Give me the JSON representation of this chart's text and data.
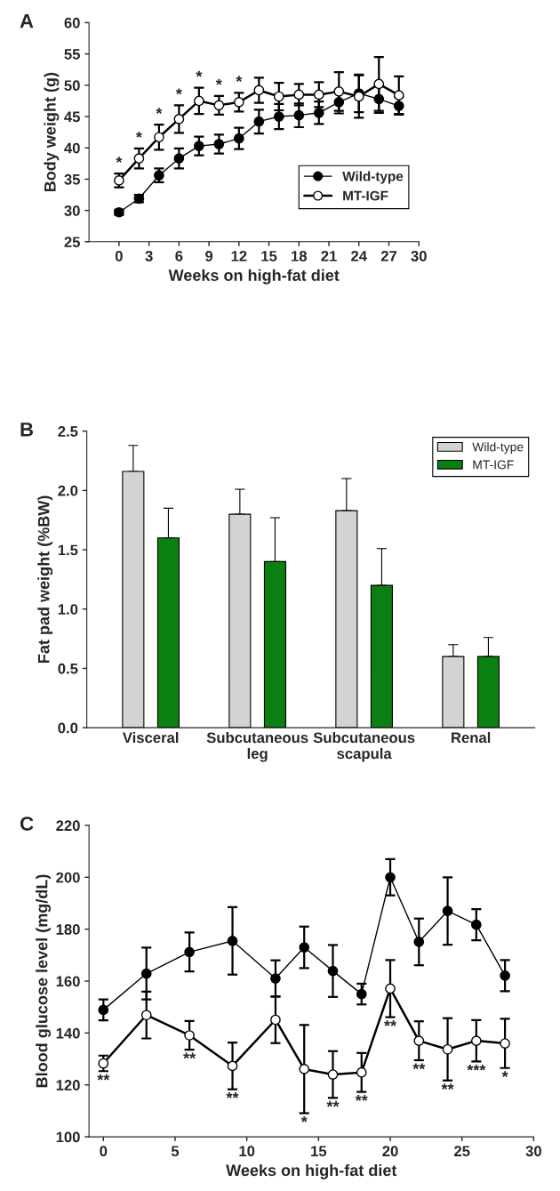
{
  "chart_data": [
    {
      "type": "line",
      "xlabel": "Weeks on high-fat diet",
      "ylabel": "Body weight (g)",
      "x": [
        0,
        2,
        4,
        6,
        8,
        10,
        12,
        14,
        16,
        18,
        20,
        22,
        24,
        26,
        28
      ],
      "series": [
        {
          "name": "Wild-type",
          "color": "#000000",
          "values": [
            29.7,
            31.9,
            35.6,
            38.3,
            40.3,
            40.6,
            41.5,
            44.2,
            45.0,
            45.2,
            45.6,
            47.3,
            48.7,
            47.8,
            46.7
          ],
          "errors": [
            0.4,
            0.6,
            1.1,
            1.6,
            1.5,
            1.5,
            1.7,
            1.9,
            2.0,
            1.9,
            1.8,
            1.8,
            3.0,
            2.2,
            1.4
          ]
        },
        {
          "name": "MT-IGF",
          "color": "#ffffff",
          "values": [
            34.8,
            38.3,
            41.7,
            44.6,
            47.5,
            46.8,
            47.3,
            49.2,
            48.2,
            48.5,
            48.5,
            49.0,
            48.2,
            50.2,
            48.4
          ],
          "errors": [
            1.1,
            1.6,
            2.0,
            2.2,
            2.1,
            1.5,
            1.5,
            2.0,
            2.2,
            1.7,
            2.0,
            3.1,
            3.4,
            4.3,
            3.0
          ]
        }
      ],
      "xlim": [
        -3,
        30
      ],
      "xticks": [
        0,
        3,
        6,
        9,
        12,
        15,
        18,
        21,
        24,
        27,
        30
      ],
      "ylim": [
        25,
        60
      ],
      "yticks": [
        25,
        30,
        35,
        40,
        45,
        50,
        55,
        60
      ],
      "marker": "circle",
      "legend": "bottom right",
      "grid": false,
      "annotations": [
        "A",
        {
          "text": "*",
          "x": 0,
          "y": 34.8
        },
        {
          "text": "*",
          "x": 2,
          "y": 38.3
        },
        {
          "text": "*",
          "x": 4,
          "y": 41.7
        },
        {
          "text": "*",
          "x": 6,
          "y": 44.6
        },
        {
          "text": "*",
          "x": 8,
          "y": 47.5
        },
        {
          "text": "*",
          "x": 10,
          "y": 46.8
        },
        {
          "text": "*",
          "x": 12,
          "y": 47.3
        }
      ]
    },
    {
      "type": "bar",
      "ylabel": "Fat pad weight (%BW)",
      "categories": [
        "Visceral",
        "Subcutaneous\nleg",
        "Subcutaneous\nscapula",
        "Renal"
      ],
      "series": [
        {
          "name": "Wild-type",
          "color": "#d3d3d3",
          "values": [
            2.16,
            1.8,
            1.83,
            0.6
          ],
          "errors": [
            [
              2.16,
              2.38
            ],
            [
              1.8,
              2.01
            ],
            [
              1.83,
              2.1
            ],
            [
              0.6,
              0.7
            ]
          ]
        },
        {
          "name": "MT-IGF",
          "color": "#0a7f12",
          "values": [
            1.6,
            1.4,
            1.2,
            0.6
          ],
          "errors": [
            [
              1.6,
              1.85
            ],
            [
              1.4,
              1.77
            ],
            [
              1.2,
              1.51
            ],
            [
              0.6,
              0.76
            ]
          ]
        }
      ],
      "ylim": [
        0,
        2.5
      ],
      "yticks": [
        {
          "value": 0,
          "label": "0.0"
        },
        0.5,
        {
          "value": 1,
          "label": "1.0"
        },
        1.5,
        {
          "value": 2,
          "label": "2.0"
        },
        2.5
      ],
      "legend": "top right",
      "grid": false,
      "annotations": [
        "B"
      ]
    },
    {
      "type": "line",
      "xlabel": "Weeks on high-fat diet",
      "ylabel": "Blood glucose level (mg/dL)",
      "x": [
        0,
        3,
        6,
        9,
        12,
        14,
        16,
        18,
        20,
        22,
        24,
        26,
        28
      ],
      "series": [
        {
          "color": "#000000",
          "values": [
            148.9,
            162.9,
            171.2,
            175.5,
            161.0,
            173.0,
            163.9,
            155.0,
            200.0,
            175.1,
            187.0,
            181.7,
            162.1
          ],
          "errors": [
            4,
            10,
            7.5,
            13,
            7,
            8,
            10,
            4,
            7,
            9,
            13,
            6,
            6
          ]
        },
        {
          "color": "#ffffff",
          "values": [
            128.3,
            146.9,
            139.1,
            127.3,
            145.1,
            126.1,
            124.0,
            124.8,
            157.1,
            137.0,
            133.7,
            137.0,
            136.0
          ],
          "errors": [
            3,
            9,
            5.5,
            9,
            9,
            17,
            9,
            7.5,
            11,
            7.5,
            12,
            8,
            9.5
          ]
        }
      ],
      "xlim": [
        -1,
        30
      ],
      "xticks": [
        0,
        5,
        10,
        15,
        20,
        25,
        30
      ],
      "ylim": [
        100,
        220
      ],
      "yticks": [
        100,
        120,
        140,
        160,
        180,
        200,
        220
      ],
      "marker": "circle",
      "grid": false,
      "annotations": [
        "C",
        {
          "text": "**",
          "x": 0,
          "y": 128.3
        },
        {
          "text": "**",
          "x": 6,
          "y": 139.1
        },
        {
          "text": "**",
          "x": 9,
          "y": 127.3
        },
        {
          "text": "*",
          "x": 14,
          "y": 126.1
        },
        {
          "text": "**",
          "x": 16,
          "y": 124.0
        },
        {
          "text": "**",
          "x": 18,
          "y": 124.8
        },
        {
          "text": "**",
          "x": 20,
          "y": 157.1
        },
        {
          "text": "**",
          "x": 22,
          "y": 137.0
        },
        {
          "text": "**",
          "x": 24,
          "y": 133.7
        },
        {
          "text": "***",
          "x": 26,
          "y": 137.0
        },
        {
          "text": "*",
          "x": 28,
          "y": 136.0
        }
      ]
    }
  ]
}
